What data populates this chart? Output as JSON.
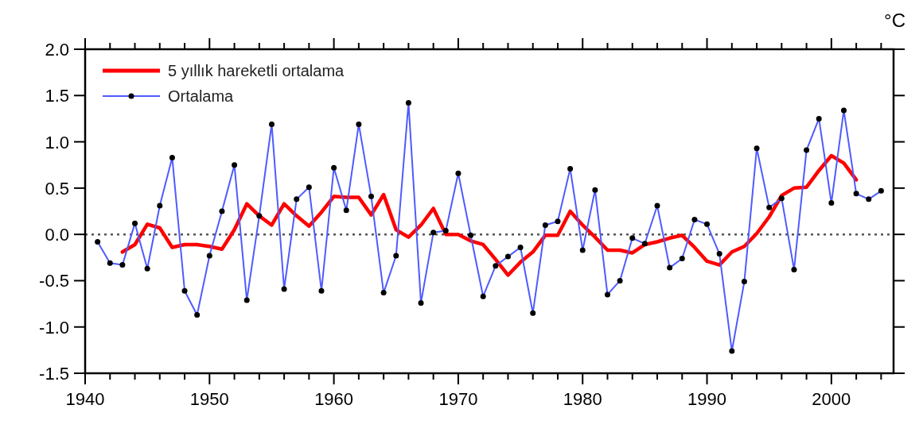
{
  "chart_data": {
    "type": "line",
    "ylabel": "°C",
    "x": [
      1941,
      1942,
      1943,
      1944,
      1945,
      1946,
      1947,
      1948,
      1949,
      1950,
      1951,
      1952,
      1953,
      1954,
      1955,
      1956,
      1957,
      1958,
      1959,
      1960,
      1961,
      1962,
      1963,
      1964,
      1965,
      1966,
      1967,
      1968,
      1969,
      1970,
      1971,
      1972,
      1973,
      1974,
      1975,
      1976,
      1977,
      1978,
      1979,
      1980,
      1981,
      1982,
      1983,
      1984,
      1985,
      1986,
      1987,
      1988,
      1989,
      1990,
      1991,
      1992,
      1993,
      1994,
      1995,
      1996,
      1997,
      1998,
      1999,
      2000,
      2001,
      2002,
      2003,
      2004
    ],
    "series": [
      {
        "name": "5 yıllık hareketli ortalama",
        "color": "#ff0000",
        "marker": "none",
        "x": [
          1943,
          1944,
          1945,
          1946,
          1947,
          1948,
          1949,
          1950,
          1951,
          1952,
          1953,
          1954,
          1955,
          1956,
          1957,
          1958,
          1959,
          1960,
          1961,
          1962,
          1963,
          1964,
          1965,
          1966,
          1967,
          1968,
          1969,
          1970,
          1971,
          1972,
          1973,
          1974,
          1975,
          1976,
          1977,
          1978,
          1979,
          1980,
          1981,
          1982,
          1983,
          1984,
          1985,
          1986,
          1987,
          1988,
          1989,
          1990,
          1991,
          1992,
          1993,
          1994,
          1995,
          1996,
          1997,
          1998,
          1999,
          2000,
          2001,
          2002
        ],
        "values": [
          -0.19,
          -0.11,
          0.11,
          0.07,
          -0.14,
          -0.11,
          -0.11,
          -0.13,
          -0.16,
          0.05,
          0.33,
          0.2,
          0.1,
          0.33,
          0.2,
          0.09,
          0.24,
          0.41,
          0.4,
          0.4,
          0.21,
          0.43,
          0.05,
          -0.03,
          0.1,
          0.28,
          0.0,
          0.0,
          -0.07,
          -0.11,
          -0.27,
          -0.44,
          -0.3,
          -0.19,
          -0.01,
          -0.01,
          0.25,
          0.1,
          -0.03,
          -0.17,
          -0.17,
          -0.2,
          -0.11,
          -0.08,
          -0.04,
          -0.01,
          -0.14,
          -0.29,
          -0.33,
          -0.19,
          -0.13,
          0.01,
          0.19,
          0.42,
          0.5,
          0.51,
          0.69,
          0.85,
          0.77,
          0.59
        ]
      },
      {
        "name": "Ortalama",
        "color": "#4f5bff",
        "marker": "circle",
        "values": [
          -0.08,
          -0.31,
          -0.33,
          0.12,
          -0.37,
          0.31,
          0.83,
          -0.61,
          -0.87,
          -0.23,
          0.25,
          0.75,
          -0.71,
          0.2,
          1.19,
          -0.59,
          0.38,
          0.51,
          -0.61,
          0.72,
          0.26,
          1.19,
          0.41,
          -0.63,
          -0.23,
          1.42,
          -0.74,
          0.02,
          0.04,
          0.66,
          -0.01,
          -0.67,
          -0.34,
          -0.24,
          -0.14,
          -0.85,
          0.1,
          0.14,
          0.71,
          -0.17,
          0.48,
          -0.65,
          -0.5,
          -0.04,
          -0.1,
          0.31,
          -0.36,
          -0.26,
          0.16,
          0.11,
          -0.21,
          -1.26,
          -0.51,
          0.93,
          0.29,
          0.39,
          -0.38,
          0.91,
          1.25,
          0.34,
          1.34,
          0.44,
          0.38,
          0.47
        ]
      }
    ],
    "xlim": [
      1940,
      2005
    ],
    "xticks": [
      1940,
      {
        "value": 1942,
        "label": null
      },
      {
        "value": 1944,
        "label": null
      },
      {
        "value": 1946,
        "label": null
      },
      {
        "value": 1948,
        "label": null
      },
      1950,
      {
        "value": 1952,
        "label": null
      },
      {
        "value": 1954,
        "label": null
      },
      {
        "value": 1956,
        "label": null
      },
      {
        "value": 1958,
        "label": null
      },
      1960,
      {
        "value": 1962,
        "label": null
      },
      {
        "value": 1964,
        "label": null
      },
      {
        "value": 1966,
        "label": null
      },
      {
        "value": 1968,
        "label": null
      },
      1970,
      {
        "value": 1972,
        "label": null
      },
      {
        "value": 1974,
        "label": null
      },
      {
        "value": 1976,
        "label": null
      },
      {
        "value": 1978,
        "label": null
      },
      1980,
      {
        "value": 1982,
        "label": null
      },
      {
        "value": 1984,
        "label": null
      },
      {
        "value": 1986,
        "label": null
      },
      {
        "value": 1988,
        "label": null
      },
      1990,
      {
        "value": 1992,
        "label": null
      },
      {
        "value": 1994,
        "label": null
      },
      {
        "value": 1996,
        "label": null
      },
      {
        "value": 1998,
        "label": null
      },
      2000,
      {
        "value": 2002,
        "label": null
      },
      {
        "value": 2004,
        "label": null
      }
    ],
    "ylim": [
      -1.5,
      2.0
    ],
    "yticks": [
      {
        "value": -1.5,
        "label": "-1.5"
      },
      {
        "value": -1.0,
        "label": "-1.0"
      },
      {
        "value": -0.5,
        "label": "-0.5"
      },
      {
        "value": 0,
        "label": "0.0"
      },
      {
        "value": 0.5,
        "label": "0.5"
      },
      {
        "value": 1.0,
        "label": "1.0"
      },
      {
        "value": 1.5,
        "label": "1.5"
      },
      {
        "value": 2.0,
        "label": "2.0"
      }
    ],
    "ref_lines": [
      {
        "axis": "y",
        "value": 0,
        "color": "#555555",
        "line_style": "dotted"
      }
    ],
    "grid": false,
    "legend": "top left"
  }
}
